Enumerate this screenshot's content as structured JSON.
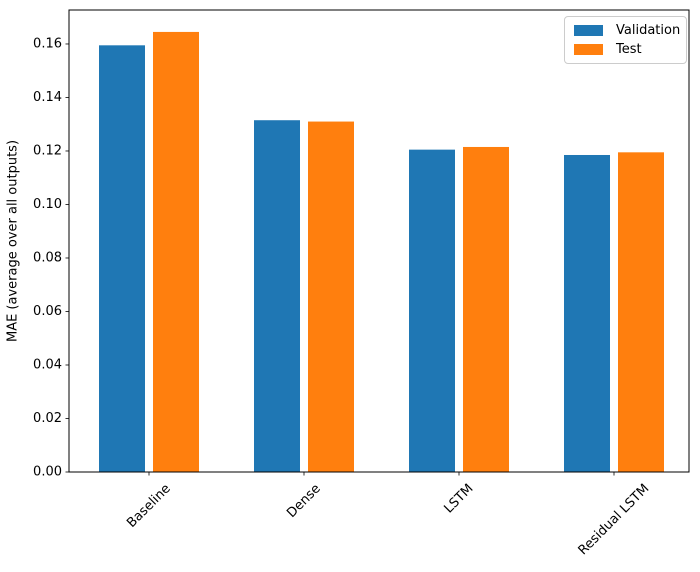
{
  "figure": {
    "background_color": "#ffffff",
    "axes_edge_color": "#000000",
    "legend_border_color": "#cccccc"
  },
  "chart_data": {
    "type": "bar",
    "title": "",
    "xlabel": "",
    "ylabel": "MAE (average over all outputs)",
    "categories": [
      "Baseline",
      "Dense",
      "LSTM",
      "Residual LSTM"
    ],
    "series": [
      {
        "name": "Validation",
        "color": "#1f77b4",
        "values": [
          0.1595,
          0.1315,
          0.1205,
          0.1185
        ]
      },
      {
        "name": "Test",
        "color": "#ff7f0e",
        "values": [
          0.1645,
          0.131,
          0.1215,
          0.1195
        ]
      }
    ],
    "ylim": [
      0,
      0.1727
    ],
    "yticks": [
      0.0,
      0.02,
      0.04,
      0.06,
      0.08,
      0.1,
      0.12,
      0.14,
      0.16
    ],
    "ytick_labels": [
      "0.00",
      "0.02",
      "0.04",
      "0.06",
      "0.08",
      "0.10",
      "0.12",
      "0.14",
      "0.16"
    ],
    "xtick_rotation_deg": 45,
    "grid": false,
    "legend_position": "upper right",
    "bar_width_fraction": 0.3
  }
}
